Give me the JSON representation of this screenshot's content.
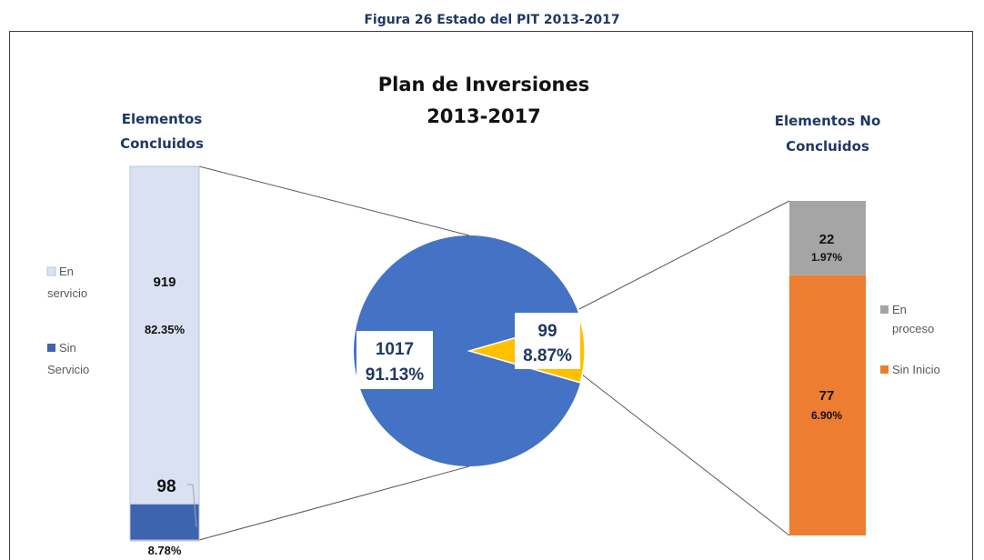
{
  "caption": "Figura 26 Estado del PIT 2013-2017",
  "chart_data": [
    {
      "type": "pie",
      "title_lines": [
        "Plan de Inversiones",
        "2013-2017"
      ],
      "slices": [
        {
          "name": "Elementos Concluidos",
          "value": 1017,
          "percent_label": "91.13%",
          "color": "#4472c4"
        },
        {
          "name": "Elementos No Concluidos",
          "value": 99,
          "percent_label": "8.87%",
          "color": "#ffc000"
        }
      ]
    },
    {
      "type": "bar",
      "stacked": true,
      "title_lines": [
        "Elementos",
        "Concluidos"
      ],
      "series": [
        {
          "name": "Sin Servicio",
          "legend_lines": [
            "Sin",
            "Servicio"
          ],
          "value": 98,
          "percent_label": "8.78%",
          "color": "#3d64ae"
        },
        {
          "name": "En servicio",
          "legend_lines": [
            "En",
            "servicio"
          ],
          "value": 919,
          "percent_label": "82.35%",
          "color": "#d9e1f2"
        }
      ]
    },
    {
      "type": "bar",
      "stacked": true,
      "title_lines": [
        "Elementos No",
        "Concluidos"
      ],
      "series": [
        {
          "name": "Sin Inicio",
          "legend_lines": [
            "Sin Inicio"
          ],
          "value": 77,
          "percent_label": "6.90%",
          "color": "#ed7d31"
        },
        {
          "name": "En proceso",
          "legend_lines": [
            "En",
            "proceso"
          ],
          "value": 22,
          "percent_label": "1.97%",
          "color": "#a5a5a5"
        }
      ]
    }
  ]
}
